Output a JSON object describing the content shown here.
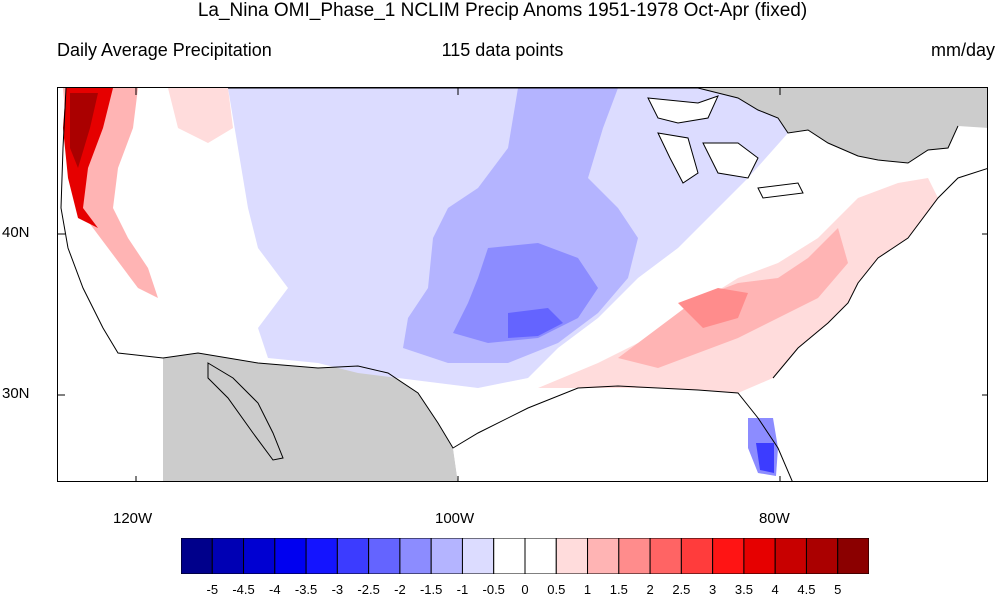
{
  "title": "La_Nina OMI_Phase_1 NCLIM Precip Anoms 1951-1978 Oct-Apr (fixed)",
  "left_label": "Daily Average Precipitation",
  "center_label": "115 data points",
  "right_label": "mm/day",
  "axes": {
    "lon_ticks": [
      "120W",
      "100W",
      "80W"
    ],
    "lat_ticks": [
      "40N",
      "30N"
    ]
  },
  "colorbar": {
    "labels": [
      "-5",
      "-4.5",
      "-4",
      "-3.5",
      "-3",
      "-2.5",
      "-2",
      "-1.5",
      "-1",
      "-0.5",
      "0",
      "0.5",
      "1",
      "1.5",
      "2",
      "2.5",
      "3",
      "3.5",
      "4",
      "4.5",
      "5"
    ],
    "colors": [
      "#00008b",
      "#0000b4",
      "#0000d2",
      "#0000f0",
      "#1414ff",
      "#3c3cff",
      "#6464ff",
      "#8c8cff",
      "#b4b4ff",
      "#dcdcff",
      "#ffffff",
      "#ffffff",
      "#ffdcdc",
      "#ffb4b4",
      "#ff8c8c",
      "#ff6464",
      "#ff3c3c",
      "#ff1414",
      "#e60000",
      "#c80000",
      "#aa0000",
      "#8b0000"
    ]
  },
  "colors": {
    "land_masked": "#cccccc",
    "coast_line": "#000000"
  }
}
